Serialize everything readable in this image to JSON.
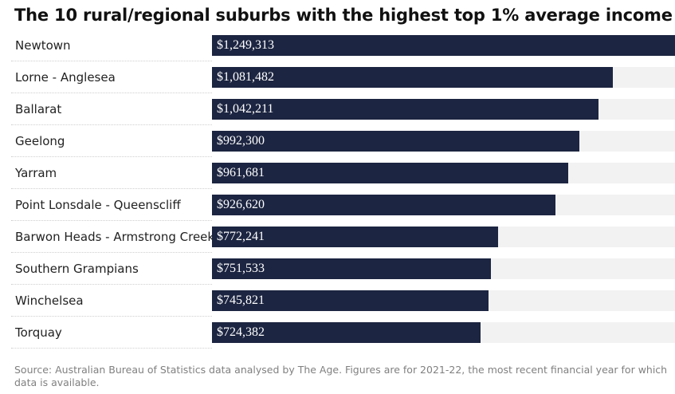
{
  "title": "The 10 rural/regional suburbs with the highest top 1% average income",
  "source": "Source: Australian Bureau of Statistics data analysed by The Age. Figures are for 2021-22, the most recent financial year for which data is available.",
  "colors": {
    "bar": "#1c2541",
    "track": "#f2f2f2"
  },
  "chart_data": {
    "type": "bar",
    "orientation": "horizontal",
    "title": "The 10 rural/regional suburbs with the highest top 1% average income",
    "xlim": [
      0,
      1249313
    ],
    "categories": [
      "Newtown",
      "Lorne - Anglesea",
      "Ballarat",
      "Geelong",
      "Yarram",
      "Point Lonsdale - Queenscliff",
      "Barwon Heads - Armstrong Creek",
      "Southern Grampians",
      "Winchelsea",
      "Torquay"
    ],
    "values": [
      1249313,
      1081482,
      1042211,
      992300,
      961681,
      926620,
      772241,
      751533,
      745821,
      724382
    ],
    "labels": [
      "$1,249,313",
      "$1,081,482",
      "$1,042,211",
      "$992,300",
      "$961,681",
      "$926,620",
      "$772,241",
      "$751,533",
      "$745,821",
      "$724,382"
    ]
  }
}
